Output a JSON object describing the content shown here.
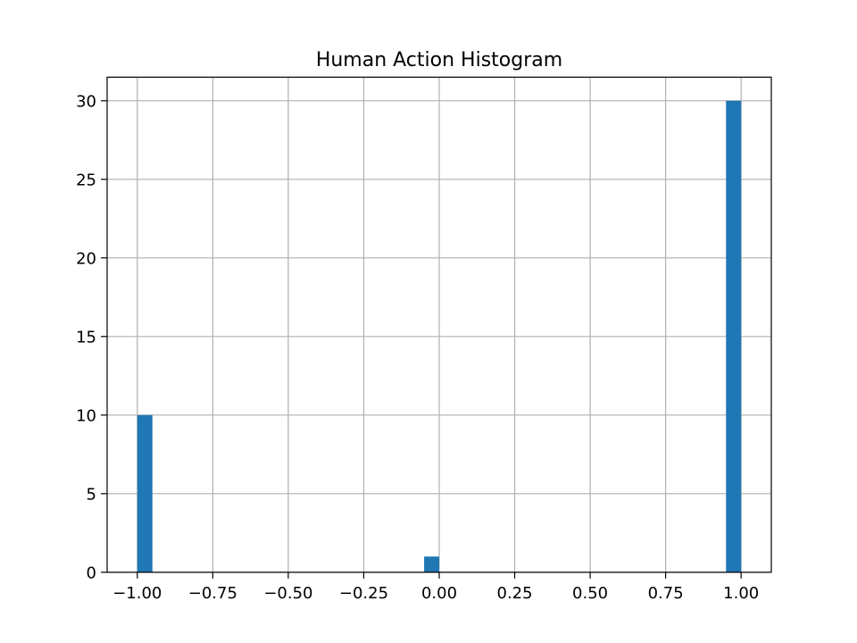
{
  "chart_data": {
    "type": "bar",
    "title": "Human Action Histogram",
    "xlabel": "",
    "ylabel": "",
    "xlim": [
      -1.1,
      1.1
    ],
    "ylim": [
      0,
      31.5
    ],
    "grid": true,
    "x_ticks": [
      -1.0,
      -0.75,
      -0.5,
      -0.25,
      0.0,
      0.25,
      0.5,
      0.75,
      1.0
    ],
    "x_tick_labels": [
      "−1.00",
      "−0.75",
      "−0.50",
      "−0.25",
      "0.00",
      "0.25",
      "0.50",
      "0.75",
      "1.00"
    ],
    "y_ticks": [
      0,
      5,
      10,
      15,
      20,
      25,
      30
    ],
    "y_tick_labels": [
      "0",
      "5",
      "10",
      "15",
      "20",
      "25",
      "30"
    ],
    "bars": [
      {
        "x0": -1.0,
        "x1": -0.95,
        "value": 10
      },
      {
        "x0": -0.05,
        "x1": 0.0,
        "value": 1
      },
      {
        "x0": 0.95,
        "x1": 1.0,
        "value": 30
      }
    ],
    "colors": {
      "bar": "#1f77b4",
      "grid": "#b0b0b0",
      "axis": "#000000"
    }
  }
}
